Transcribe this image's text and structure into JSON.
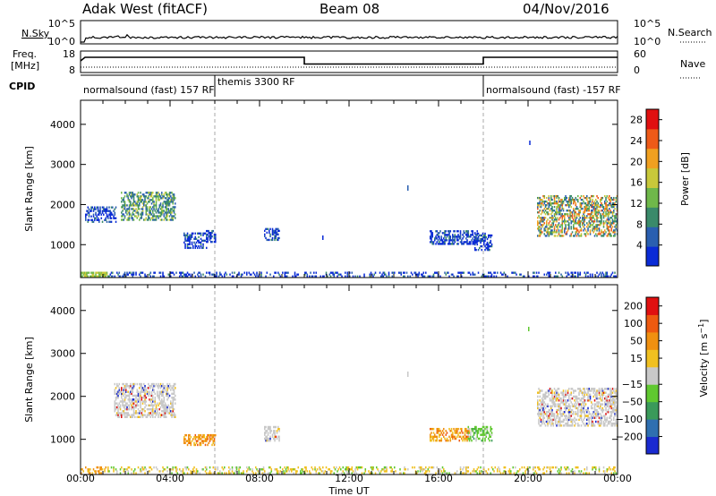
{
  "header": {
    "station": "Adak West (fitACF)",
    "beam": "Beam 08",
    "date": "04/Nov/2016"
  },
  "top_panels": {
    "nsky": {
      "label": "N.Sky",
      "ticks": [
        "10^5",
        "10^0"
      ]
    },
    "nsearch": {
      "label": "N.Search",
      "ticks": [
        "10^5",
        "10^0"
      ]
    },
    "freq": {
      "label_line1": "Freq.",
      "label_line2": "[MHz]",
      "ticks": [
        "18",
        "8"
      ]
    },
    "nave": {
      "label": "Nave",
      "ticks": [
        "60",
        "0"
      ]
    },
    "cpid": {
      "label": "CPID"
    },
    "cpid_segments": [
      {
        "text": "normalsound (fast) 157 RF",
        "start_hour": 0,
        "end_hour": 6
      },
      {
        "text": "themis 3300 RF",
        "start_hour": 6,
        "end_hour": 18
      },
      {
        "text": "normalsound (fast) -157 RF",
        "start_hour": 18,
        "end_hour": 24
      }
    ]
  },
  "chart_data": [
    {
      "type": "heatmap",
      "title": "",
      "xlabel": "Time UT",
      "ylabel": "Slant Range [km]",
      "xlim": [
        0,
        24
      ],
      "ylim": [
        180,
        4600
      ],
      "x_ticks": [
        "00:00",
        "04:00",
        "08:00",
        "12:00",
        "16:00",
        "20:00",
        "00:00"
      ],
      "y_ticks": [
        1000,
        2000,
        3000,
        4000
      ],
      "colorbar": {
        "label": "Power [dB]",
        "ticks": [
          4,
          8,
          12,
          16,
          20,
          24,
          28
        ],
        "range": [
          0,
          30
        ],
        "colors": [
          "#0a2bd6",
          "#2a5fb0",
          "#3a8a6a",
          "#6fb84a",
          "#c8c83a",
          "#f0a020",
          "#ee5a18",
          "#e01010"
        ]
      },
      "scatter_regions": [
        {
          "t0": 0.2,
          "t1": 1.6,
          "r0": 1550,
          "r1": 1950,
          "level": "low"
        },
        {
          "t0": 1.8,
          "t1": 4.2,
          "r0": 1600,
          "r1": 2300,
          "level": "mid"
        },
        {
          "t0": 4.6,
          "t1": 5.6,
          "r0": 900,
          "r1": 1300,
          "level": "low"
        },
        {
          "t0": 5.6,
          "t1": 6.0,
          "r0": 1050,
          "r1": 1350,
          "level": "low"
        },
        {
          "t0": 8.2,
          "t1": 8.9,
          "r0": 1100,
          "r1": 1400,
          "level": "low"
        },
        {
          "t0": 15.6,
          "t1": 17.8,
          "r0": 1000,
          "r1": 1350,
          "level": "low"
        },
        {
          "t0": 17.6,
          "t1": 18.4,
          "r0": 850,
          "r1": 1300,
          "level": "low"
        },
        {
          "t0": 20.4,
          "t1": 24.0,
          "r0": 1200,
          "r1": 2200,
          "level": "high"
        }
      ],
      "near_range_band": {
        "r0": 190,
        "r1": 320,
        "intermittent_t0": 1.2,
        "intermittent_t1": 24.0
      }
    },
    {
      "type": "heatmap",
      "title": "",
      "xlabel": "Time UT",
      "ylabel": "Slant Range [km]",
      "xlim": [
        0,
        24
      ],
      "ylim": [
        180,
        4600
      ],
      "x_ticks": [
        "00:00",
        "04:00",
        "08:00",
        "12:00",
        "16:00",
        "20:00",
        "00:00"
      ],
      "y_ticks": [
        1000,
        2000,
        3000,
        4000
      ],
      "colorbar": {
        "label": "Velocity [m s^-1]",
        "ticks": [
          "200",
          "100",
          "50",
          "15",
          "-15",
          "-50",
          "-100",
          "-200"
        ],
        "colors": [
          "#1a2ad0",
          "#2f6fb0",
          "#3a9a5a",
          "#60c830",
          "#c8c8c8",
          "#f0c020",
          "#f09010",
          "#ee5a10",
          "#e01010"
        ]
      },
      "scatter_regions": [
        {
          "t0": 1.5,
          "t1": 4.2,
          "r0": 1500,
          "r1": 2300,
          "level": "grey"
        },
        {
          "t0": 4.6,
          "t1": 6.0,
          "r0": 850,
          "r1": 1100,
          "level": "orange"
        },
        {
          "t0": 8.2,
          "t1": 8.9,
          "r0": 950,
          "r1": 1300,
          "level": "grey"
        },
        {
          "t0": 15.6,
          "t1": 17.4,
          "r0": 950,
          "r1": 1250,
          "level": "orange"
        },
        {
          "t0": 17.3,
          "t1": 18.4,
          "r0": 950,
          "r1": 1300,
          "level": "green"
        },
        {
          "t0": 20.4,
          "t1": 24.0,
          "r0": 1300,
          "r1": 2200,
          "level": "grey"
        }
      ],
      "near_range_band": {
        "r0": 190,
        "r1": 360,
        "intermittent_t0": 0.0,
        "intermittent_t1": 24.0
      }
    }
  ]
}
